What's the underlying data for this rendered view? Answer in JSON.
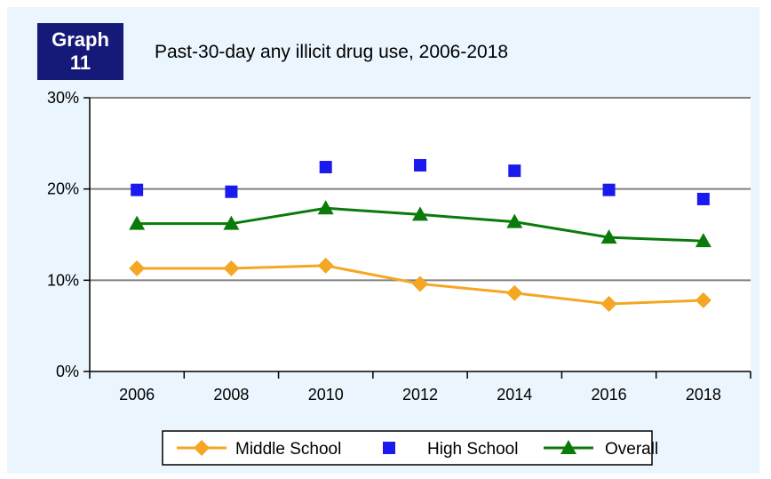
{
  "badge": {
    "line1": "Graph",
    "line2": "11"
  },
  "chart_data": {
    "type": "line",
    "title": "Past-30-day any illicit drug use, 2006-2018",
    "categories": [
      "2006",
      "2008",
      "2010",
      "2012",
      "2014",
      "2016",
      "2018"
    ],
    "y_ticks": [
      "0%",
      "10%",
      "20%",
      "30%"
    ],
    "ylim": [
      0,
      30
    ],
    "y_unit": "%",
    "grid": "horizontal major gridlines",
    "legend_position": "bottom",
    "series": [
      {
        "name": "Middle School",
        "values": [
          11.3,
          11.3,
          11.6,
          9.6,
          8.6,
          7.4,
          7.8
        ],
        "color": "#f5a623",
        "marker": "diamond",
        "line": true
      },
      {
        "name": "High School",
        "values": [
          19.9,
          19.7,
          22.4,
          22.6,
          22.0,
          19.9,
          18.9
        ],
        "color": "#1a1aee",
        "marker": "square",
        "line": false
      },
      {
        "name": "Overall",
        "values": [
          16.2,
          16.2,
          17.9,
          17.2,
          16.4,
          14.7,
          14.3
        ],
        "color": "#0a7a0a",
        "marker": "triangle",
        "line": true
      }
    ]
  }
}
